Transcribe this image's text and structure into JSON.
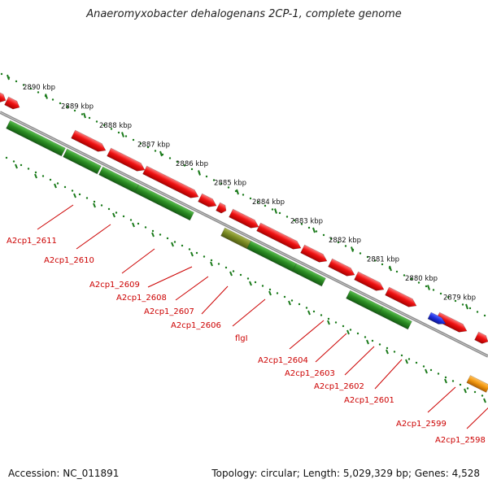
{
  "title": "Anaeromyxobacter dehalogenans 2CP-1, complete genome",
  "footer": {
    "accession": "Accession: NC_011891",
    "summary": "Topology: circular; Length: 5,029,329 bp; Genes: 4,528"
  },
  "colors": {
    "forward_gene": "#ee1111",
    "reverse_gene": "#2a8a22",
    "olive_gene": "#7a8a22",
    "blue_feature": "#1f2fe0",
    "orange_feature": "#f39a10",
    "label_red": "#cc0000",
    "tick_green": "#1a7a1a",
    "backbone": "#8a8a8a"
  },
  "scale_labels": [
    "2890 kbp",
    "2889 kbp",
    "2888 kbp",
    "2887 kbp",
    "2886 kbp",
    "2885 kbp",
    "2884 kbp",
    "2883 kbp",
    "2882 kbp",
    "2881 kbp",
    "2880 kbp",
    "2879 kbp"
  ],
  "gene_labels": [
    "A2cp1_2611",
    "A2cp1_2610",
    "A2cp1_2609",
    "A2cp1_2608",
    "A2cp1_2607",
    "A2cp1_2606",
    "flgI",
    "A2cp1_2604",
    "A2cp1_2603",
    "A2cp1_2602",
    "A2cp1_2601",
    "A2cp1_2599",
    "A2cp1_2598"
  ]
}
